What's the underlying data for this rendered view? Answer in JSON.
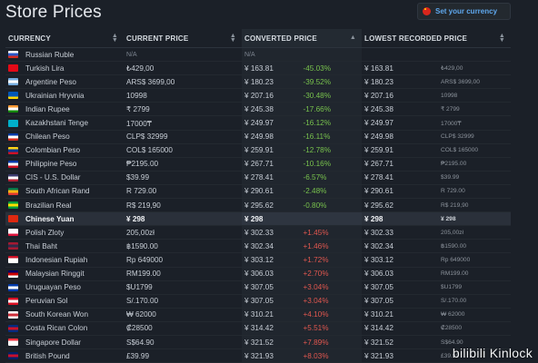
{
  "title": "Store Prices",
  "currency_button": "Set your currency",
  "headers": [
    "CURRENCY",
    "CURRENT PRICE",
    "CONVERTED PRICE",
    "LOWEST RECORDED PRICE"
  ],
  "rows": [
    {
      "name": "Russian Ruble",
      "price": "N/A",
      "conv": "N/A",
      "pct": "",
      "low": "",
      "orig": "",
      "flag": [
        "#fff",
        "#2a56c6",
        "#d52b1e"
      ],
      "na": true
    },
    {
      "name": "Turkish Lira",
      "price": "₺429,00",
      "conv": "¥ 163.81",
      "pct": "-45.03%",
      "low": "¥ 163.81",
      "orig": "₺429,00",
      "flag": [
        "#e30a17",
        "#e30a17",
        "#e30a17"
      ]
    },
    {
      "name": "Argentine Peso",
      "price": "ARS$ 3699,00",
      "conv": "¥ 180.23",
      "pct": "-39.52%",
      "low": "¥ 180.23",
      "orig": "ARS$ 3699,00",
      "flag": [
        "#74acdf",
        "#fff",
        "#74acdf"
      ]
    },
    {
      "name": "Ukrainian Hryvnia",
      "price": "10998",
      "conv": "¥ 207.16",
      "pct": "-30.48%",
      "low": "¥ 207.16",
      "orig": "10998",
      "flag": [
        "#0057b7",
        "#0057b7",
        "#ffd700"
      ]
    },
    {
      "name": "Indian Rupee",
      "price": "₹ 2799",
      "conv": "¥ 245.38",
      "pct": "-17.66%",
      "low": "¥ 245.38",
      "orig": "₹ 2799",
      "flag": [
        "#ff9933",
        "#fff",
        "#138808"
      ]
    },
    {
      "name": "Kazakhstani Tenge",
      "price": "17000₸",
      "conv": "¥ 249.97",
      "pct": "-16.12%",
      "low": "¥ 249.97",
      "orig": "17000₸",
      "flag": [
        "#00afca",
        "#00afca",
        "#00afca"
      ]
    },
    {
      "name": "Chilean Peso",
      "price": "CLP$ 32999",
      "conv": "¥ 249.98",
      "pct": "-16.11%",
      "low": "¥ 249.98",
      "orig": "CLP$ 32999",
      "flag": [
        "#0039a6",
        "#fff",
        "#d52b1e"
      ]
    },
    {
      "name": "Colombian Peso",
      "price": "COL$ 165000",
      "conv": "¥ 259.91",
      "pct": "-12.78%",
      "low": "¥ 259.91",
      "orig": "COL$ 165000",
      "flag": [
        "#fcd116",
        "#003893",
        "#ce1126"
      ]
    },
    {
      "name": "Philippine Peso",
      "price": "₱2195.00",
      "conv": "¥ 267.71",
      "pct": "-10.16%",
      "low": "¥ 267.71",
      "orig": "₱2195.00",
      "flag": [
        "#0038a8",
        "#fff",
        "#ce1126"
      ]
    },
    {
      "name": "CIS - U.S. Dollar",
      "price": "$39.99",
      "conv": "¥ 278.41",
      "pct": "-6.57%",
      "low": "¥ 278.41",
      "orig": "$39.99",
      "flag": [
        "#3c3b6e",
        "#fff",
        "#b22234"
      ]
    },
    {
      "name": "South African Rand",
      "price": "R 729.00",
      "conv": "¥ 290.61",
      "pct": "-2.48%",
      "low": "¥ 290.61",
      "orig": "R 729.00",
      "flag": [
        "#007749",
        "#ffb612",
        "#de3831"
      ]
    },
    {
      "name": "Brazilian Real",
      "price": "R$ 219,90",
      "conv": "¥ 295.62",
      "pct": "-0.80%",
      "low": "¥ 295.62",
      "orig": "R$ 219,90",
      "flag": [
        "#009c3b",
        "#ffdf00",
        "#009c3b"
      ]
    },
    {
      "name": "Chinese Yuan",
      "price": "¥ 298",
      "conv": "¥ 298",
      "pct": "",
      "low": "¥ 298",
      "orig": "¥ 298",
      "flag": [
        "#de2910",
        "#de2910",
        "#de2910"
      ],
      "hl": true
    },
    {
      "name": "Polish Zloty",
      "price": "205,00zł",
      "conv": "¥ 302.33",
      "pct": "+1.45%",
      "low": "¥ 302.33",
      "orig": "205,00zł",
      "flag": [
        "#fff",
        "#fff",
        "#dc143c"
      ]
    },
    {
      "name": "Thai Baht",
      "price": "฿1590.00",
      "conv": "¥ 302.34",
      "pct": "+1.46%",
      "low": "¥ 302.34",
      "orig": "฿1590.00",
      "flag": [
        "#a51931",
        "#2d2a4a",
        "#a51931"
      ]
    },
    {
      "name": "Indonesian Rupiah",
      "price": "Rp 649000",
      "conv": "¥ 303.12",
      "pct": "+1.72%",
      "low": "¥ 303.12",
      "orig": "Rp 649000",
      "flag": [
        "#ce1126",
        "#fff",
        "#fff"
      ]
    },
    {
      "name": "Malaysian Ringgit",
      "price": "RM199.00",
      "conv": "¥ 306.03",
      "pct": "+2.70%",
      "low": "¥ 306.03",
      "orig": "RM199.00",
      "flag": [
        "#010066",
        "#cc0001",
        "#fff"
      ]
    },
    {
      "name": "Uruguayan Peso",
      "price": "$U1799",
      "conv": "¥ 307.05",
      "pct": "+3.04%",
      "low": "¥ 307.05",
      "orig": "$U1799",
      "flag": [
        "#0038a8",
        "#fff",
        "#0038a8"
      ]
    },
    {
      "name": "Peruvian Sol",
      "price": "S/.170.00",
      "conv": "¥ 307.05",
      "pct": "+3.04%",
      "low": "¥ 307.05",
      "orig": "S/.170.00",
      "flag": [
        "#d91023",
        "#fff",
        "#d91023"
      ]
    },
    {
      "name": "South Korean Won",
      "price": "₩ 62000",
      "conv": "¥ 310.21",
      "pct": "+4.10%",
      "low": "¥ 310.21",
      "orig": "₩ 62000",
      "flag": [
        "#fff",
        "#cd2e3a",
        "#fff"
      ]
    },
    {
      "name": "Costa Rican Colon",
      "price": "₡28500",
      "conv": "¥ 314.42",
      "pct": "+5.51%",
      "low": "¥ 314.42",
      "orig": "₡28500",
      "flag": [
        "#002b7f",
        "#ce1126",
        "#002b7f"
      ]
    },
    {
      "name": "Singapore Dollar",
      "price": "S$64.90",
      "conv": "¥ 321.52",
      "pct": "+7.89%",
      "low": "¥ 321.52",
      "orig": "S$64.90",
      "flag": [
        "#ef3340",
        "#fff",
        "#fff"
      ]
    },
    {
      "name": "British Pound",
      "price": "£39.99",
      "conv": "¥ 321.93",
      "pct": "+8.03%",
      "low": "¥ 321.93",
      "orig": "£39.99",
      "flag": [
        "#012169",
        "#c8102e",
        "#012169"
      ]
    }
  ],
  "watermark": {
    "brand": "bilibili",
    "user": "Kinlock"
  }
}
